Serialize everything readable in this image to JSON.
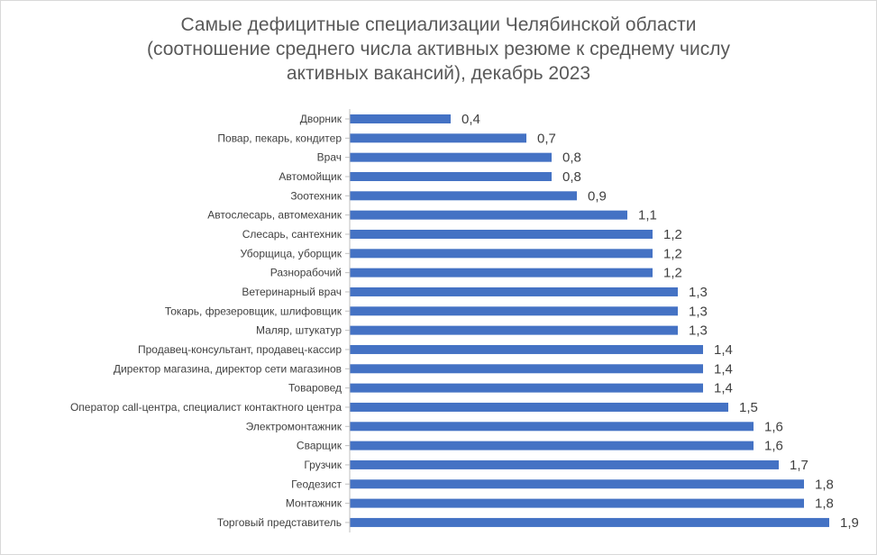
{
  "chart_data": {
    "type": "bar",
    "orientation": "horizontal",
    "title_lines": [
      "Самые дефицитные специализации Челябинской области",
      "(соотношение среднего числа активных резюме к среднему числу",
      "активных вакансий), декабрь 2023"
    ],
    "categories": [
      "Дворник",
      "Повар, пекарь, кондитер",
      "Врач",
      "Автомойщик",
      "Зоотехник",
      "Автослесарь, автомеханик",
      "Слесарь, сантехник",
      "Уборщица, уборщик",
      "Разнорабочий",
      "Ветеринарный врач",
      "Токарь, фрезеровщик, шлифовщик",
      "Маляр, штукатур",
      "Продавец-консультант, продавец-кассир",
      "Директор магазина, директор сети магазинов",
      "Товаровед",
      "Оператор call-центра, специалист контактного центра",
      "Электромонтажник",
      "Сварщик",
      "Грузчик",
      "Геодезист",
      "Монтажник",
      "Торговый представитель"
    ],
    "values": [
      0.4,
      0.7,
      0.8,
      0.8,
      0.9,
      1.1,
      1.2,
      1.2,
      1.2,
      1.3,
      1.3,
      1.3,
      1.4,
      1.4,
      1.4,
      1.5,
      1.6,
      1.6,
      1.7,
      1.8,
      1.8,
      1.9
    ],
    "value_labels": [
      "0,4",
      "0,7",
      "0,8",
      "0,8",
      "0,9",
      "1,1",
      "1,2",
      "1,2",
      "1,2",
      "1,3",
      "1,3",
      "1,3",
      "1,4",
      "1,4",
      "1,4",
      "1,5",
      "1,6",
      "1,6",
      "1,7",
      "1,8",
      "1,8",
      "1,9"
    ],
    "bar_color": "#4472c4",
    "xlim": [
      0,
      1.9
    ],
    "grid": false,
    "legend": "none"
  }
}
